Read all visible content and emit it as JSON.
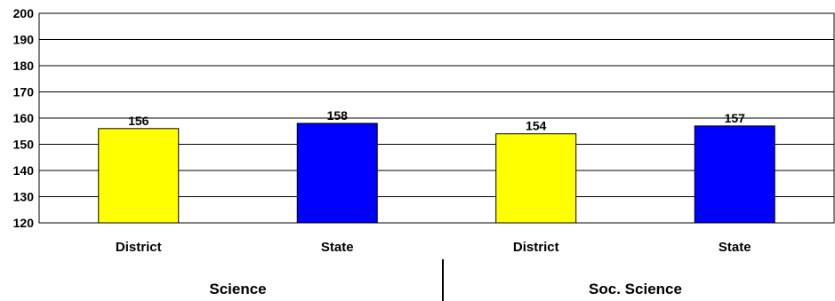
{
  "chart_data": {
    "type": "bar",
    "ylim": [
      120,
      200
    ],
    "yticks": [
      120,
      130,
      140,
      150,
      160,
      170,
      180,
      190,
      200
    ],
    "grid": true,
    "groups": [
      {
        "label": "Science",
        "bars": [
          {
            "category": "District",
            "value": 156,
            "color": "#ffff00"
          },
          {
            "category": "State",
            "value": 158,
            "color": "#0000ff"
          }
        ]
      },
      {
        "label": "Soc. Science",
        "bars": [
          {
            "category": "District",
            "value": 154,
            "color": "#ffff00"
          },
          {
            "category": "State",
            "value": 157,
            "color": "#0000ff"
          }
        ]
      }
    ]
  }
}
